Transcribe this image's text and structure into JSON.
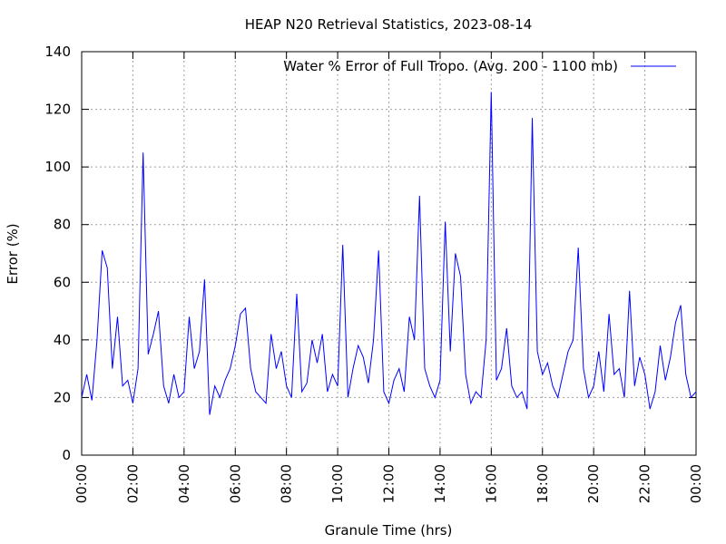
{
  "chart_data": {
    "type": "line",
    "title": "HEAP N20 Retrieval Statistics, 2023-08-14",
    "xlabel": "Granule Time (hrs)",
    "ylabel": "Error (%)",
    "x": [
      0,
      0.2,
      0.4,
      0.6,
      0.8,
      1,
      1.2,
      1.4,
      1.6,
      1.8,
      2,
      2.2,
      2.4,
      2.6,
      2.8,
      3,
      3.2,
      3.4,
      3.6,
      3.8,
      4,
      4.2,
      4.4,
      4.6,
      4.8,
      5,
      5.2,
      5.4,
      5.6,
      5.8,
      6,
      6.2,
      6.4,
      6.6,
      6.8,
      7,
      7.2,
      7.4,
      7.6,
      7.8,
      8,
      8.2,
      8.4,
      8.6,
      8.8,
      9,
      9.2,
      9.4,
      9.6,
      9.8,
      10,
      10.2,
      10.4,
      10.6,
      10.8,
      11,
      11.2,
      11.4,
      11.6,
      11.8,
      12,
      12.2,
      12.4,
      12.6,
      12.8,
      13,
      13.2,
      13.4,
      13.6,
      13.8,
      14,
      14.2,
      14.4,
      14.6,
      14.8,
      15,
      15.2,
      15.4,
      15.6,
      15.8,
      16,
      16.2,
      16.4,
      16.6,
      16.8,
      17,
      17.2,
      17.4,
      17.6,
      17.8,
      18,
      18.2,
      18.4,
      18.6,
      18.8,
      19,
      19.2,
      19.4,
      19.6,
      19.8,
      20,
      20.2,
      20.4,
      20.6,
      20.8,
      21,
      21.2,
      21.4,
      21.6,
      21.8,
      22,
      22.2,
      22.4,
      22.6,
      22.8,
      23,
      23.2,
      23.4,
      23.6,
      23.8,
      24
    ],
    "series": [
      {
        "name": "Water % Error of Full Tropo. (Avg. 200 - 1100 mb)",
        "color": "#0000ff",
        "values": [
          20,
          28,
          19,
          40,
          71,
          65,
          30,
          48,
          24,
          26,
          18,
          30,
          105,
          35,
          42,
          50,
          24,
          18,
          28,
          20,
          22,
          48,
          30,
          36,
          61,
          14,
          24,
          20,
          26,
          30,
          38,
          49,
          51,
          30,
          22,
          20,
          18,
          42,
          30,
          36,
          24,
          20,
          56,
          22,
          25,
          40,
          32,
          42,
          22,
          28,
          24,
          73,
          20,
          30,
          38,
          34,
          25,
          40,
          71,
          22,
          18,
          26,
          30,
          22,
          48,
          40,
          90,
          30,
          24,
          20,
          26,
          81,
          36,
          70,
          62,
          28,
          18,
          22,
          20,
          40,
          126,
          26,
          30,
          44,
          24,
          20,
          22,
          16,
          117,
          36,
          28,
          32,
          24,
          20,
          28,
          36,
          40,
          72,
          30,
          20,
          24,
          36,
          22,
          49,
          28,
          30,
          20,
          57,
          24,
          34,
          28,
          16,
          22,
          38,
          26,
          34,
          46,
          52,
          28,
          20,
          22
        ]
      }
    ],
    "xlim": [
      0,
      24
    ],
    "xticks": [
      {
        "value": 0,
        "label": "00:00"
      },
      {
        "value": 2,
        "label": "02:00"
      },
      {
        "value": 4,
        "label": "04:00"
      },
      {
        "value": 6,
        "label": "06:00"
      },
      {
        "value": 8,
        "label": "08:00"
      },
      {
        "value": 10,
        "label": "10:00"
      },
      {
        "value": 12,
        "label": "12:00"
      },
      {
        "value": 14,
        "label": "14:00"
      },
      {
        "value": 16,
        "label": "16:00"
      },
      {
        "value": 18,
        "label": "18:00"
      },
      {
        "value": 20,
        "label": "20:00"
      },
      {
        "value": 22,
        "label": "22:00"
      },
      {
        "value": 24,
        "label": "00:00"
      }
    ],
    "ylim": [
      0,
      140
    ],
    "yticks": [
      0,
      20,
      40,
      60,
      80,
      100,
      120,
      140
    ],
    "grid": true,
    "legend": "top-right"
  }
}
